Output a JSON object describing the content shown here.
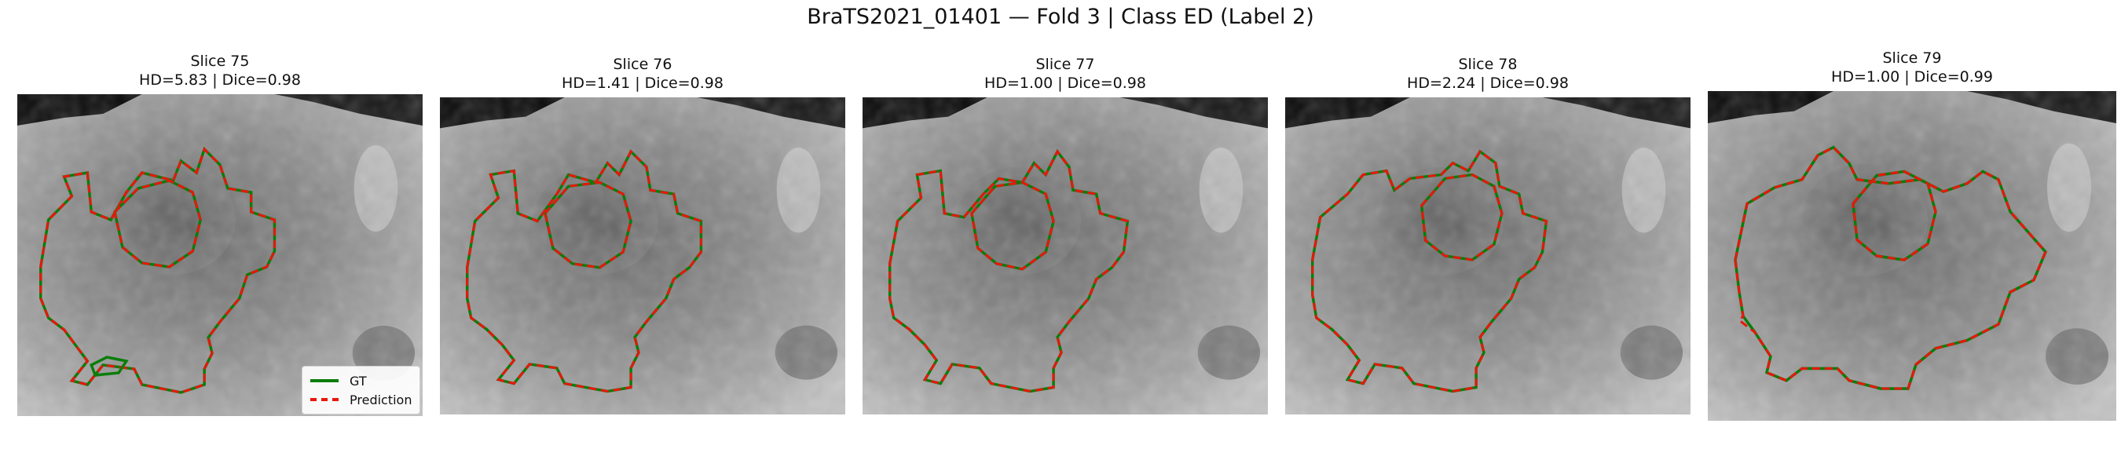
{
  "title": "BraTS2021_01401 — Fold 3 | Class ED (Label 2)",
  "panels": [
    {
      "slice": "Slice 75",
      "metrics": "HD=5.83 | Dice=0.98"
    },
    {
      "slice": "Slice 76",
      "metrics": "HD=1.41 | Dice=0.98"
    },
    {
      "slice": "Slice 77",
      "metrics": "HD=1.00 | Dice=0.98"
    },
    {
      "slice": "Slice 78",
      "metrics": "HD=2.24 | Dice=0.98"
    },
    {
      "slice": "Slice 79",
      "metrics": "HD=1.00 | Dice=0.99"
    }
  ],
  "legend": {
    "gt": "GT",
    "pred": "Prediction"
  },
  "colors": {
    "gt": "#0a7d0a",
    "pred": "#e8170c"
  }
}
